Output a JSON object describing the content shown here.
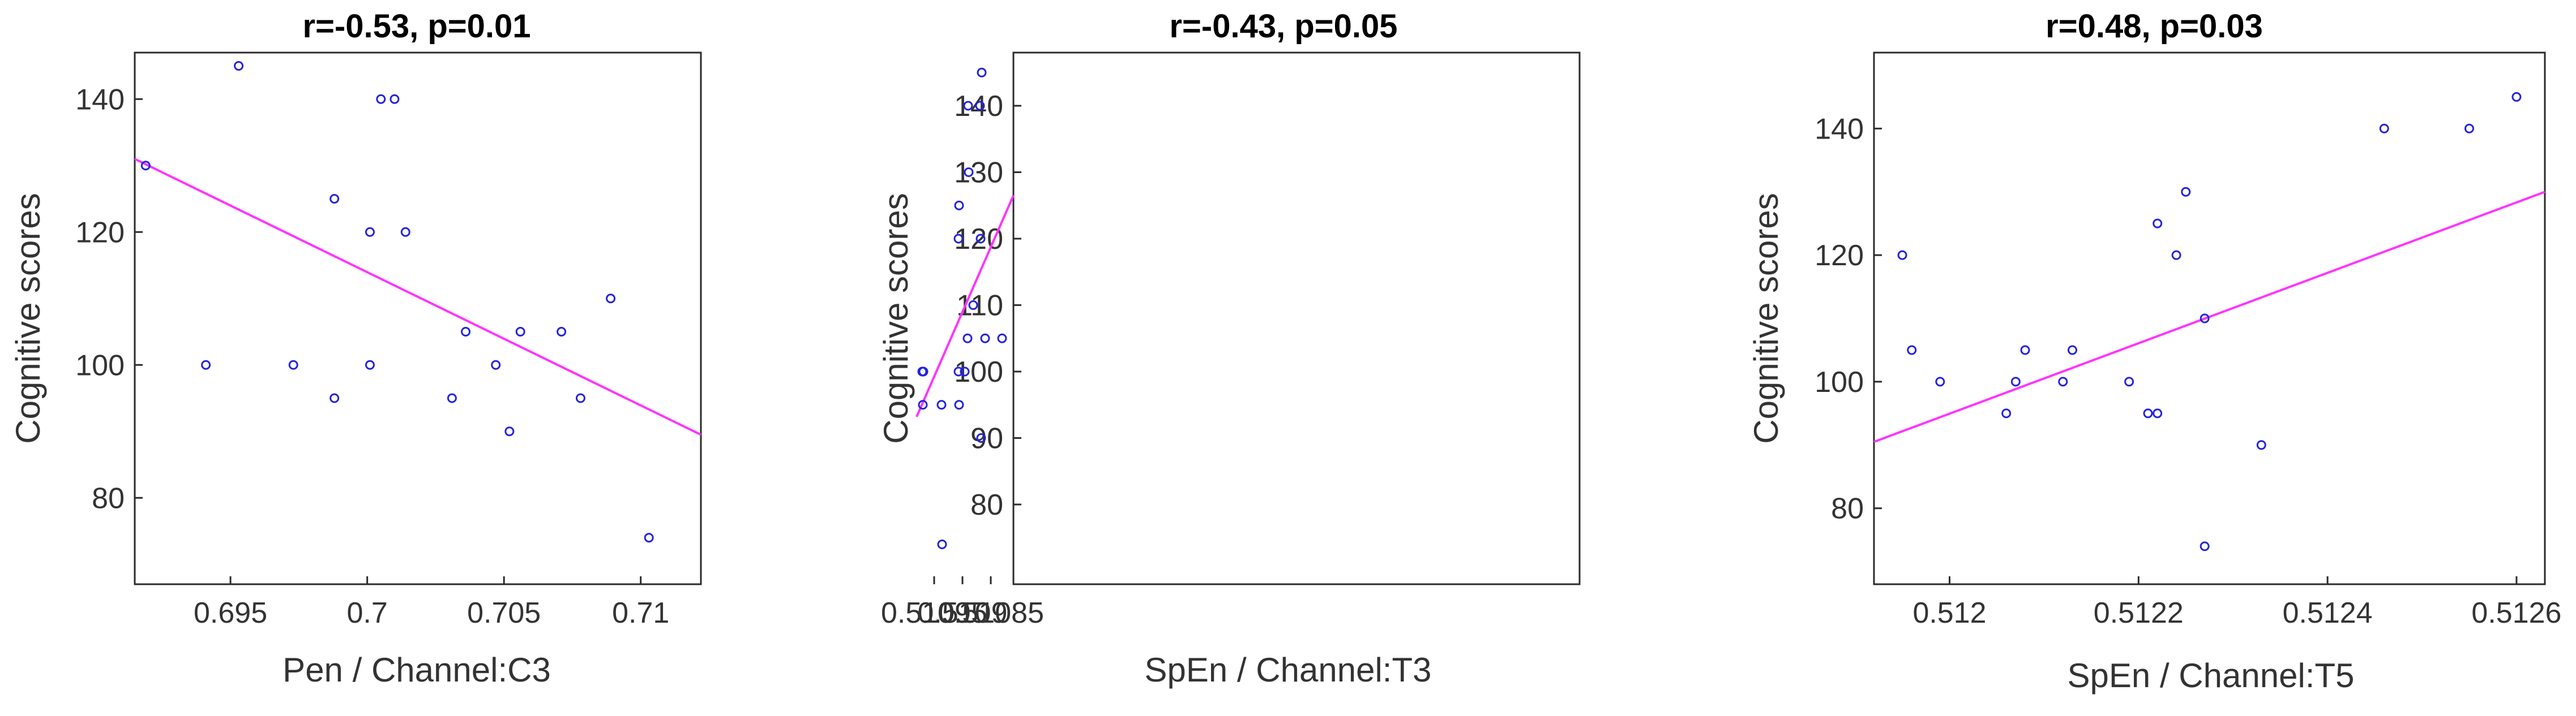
{
  "chart_data": [
    {
      "type": "scatter",
      "title": "r=-0.53, p=0.01",
      "xlabel": "Pen / Channel:C3",
      "ylabel": "Cognitive scores",
      "xlim": [
        0.6915,
        0.7122
      ],
      "ylim": [
        67,
        147
      ],
      "xticks": [
        0.695,
        0.7,
        0.705,
        0.71
      ],
      "xtick_labels": [
        "0.695",
        "0.7",
        "0.705",
        "0.71"
      ],
      "yticks": [
        80,
        100,
        120,
        140
      ],
      "ytick_labels": [
        "80",
        "100",
        "120",
        "140"
      ],
      "points": [
        [
          0.6919,
          130
        ],
        [
          0.6941,
          100
        ],
        [
          0.6953,
          145
        ],
        [
          0.6973,
          100
        ],
        [
          0.6988,
          125
        ],
        [
          0.6988,
          95
        ],
        [
          0.7001,
          120
        ],
        [
          0.7001,
          100
        ],
        [
          0.7005,
          140
        ],
        [
          0.701,
          140
        ],
        [
          0.7014,
          120
        ],
        [
          0.7031,
          95
        ],
        [
          0.7036,
          105
        ],
        [
          0.7047,
          100
        ],
        [
          0.7052,
          90
        ],
        [
          0.7056,
          105
        ],
        [
          0.7071,
          105
        ],
        [
          0.7078,
          95
        ],
        [
          0.7089,
          110
        ],
        [
          0.7103,
          74
        ]
      ],
      "fit_line": [
        [
          0.6915,
          131
        ],
        [
          0.7122,
          89.5
        ]
      ],
      "point_color": "#2222dd",
      "line_color": "#ff33ff",
      "grid": false
    },
    {
      "type": "scatter",
      "title": "r=-0.43, p=0.05",
      "xlabel": "SpEn / Channel:T3",
      "ylabel": "Cognitive scores",
      "xlim": [
        0.51081,
        0.50981
      ],
      "ylim": [
        68,
        148
      ],
      "xticks": [
        0.51085,
        0.5109,
        0.51095
      ],
      "xtick_labels": [
        "0.51085",
        "0.5109",
        "0.51095"
      ],
      "yticks": [
        80,
        90,
        100,
        110,
        120,
        130,
        140
      ],
      "ytick_labels": [
        "80",
        "90",
        "100",
        "110",
        "120",
        "130",
        "140"
      ],
      "points": [
        [
          0.51083,
          105
        ],
        [
          0.51086,
          105
        ],
        [
          0.510866,
          145
        ],
        [
          0.510867,
          90
        ],
        [
          0.510868,
          120
        ],
        [
          0.510869,
          140
        ],
        [
          0.510881,
          110
        ],
        [
          0.510889,
          130
        ],
        [
          0.51089,
          140
        ],
        [
          0.510891,
          105
        ],
        [
          0.510896,
          100
        ],
        [
          0.510906,
          125
        ],
        [
          0.510906,
          95
        ],
        [
          0.510907,
          120
        ],
        [
          0.510907,
          100
        ],
        [
          0.510936,
          74
        ],
        [
          0.510937,
          95
        ],
        [
          0.510969,
          100
        ],
        [
          0.51097,
          100
        ],
        [
          0.51097,
          95
        ],
        [
          0.510971,
          100
        ]
      ],
      "fit_line": [
        [
          0.51081,
          126.5
        ],
        [
          0.510981,
          93.2
        ]
      ],
      "point_color": "#2222dd",
      "line_color": "#ff33ff",
      "grid": false
    },
    {
      "type": "scatter",
      "title": "r=0.48, p=0.03",
      "xlabel": "SpEn / Channel:T5",
      "ylabel": "Cognitive scores",
      "xlim": [
        0.51192,
        0.51263
      ],
      "ylim": [
        68,
        152
      ],
      "xticks": [
        0.512,
        0.5122,
        0.5124,
        0.5126
      ],
      "xtick_labels": [
        "0.512",
        "0.5122",
        "0.5124",
        "0.5126"
      ],
      "yticks": [
        80,
        100,
        120,
        140
      ],
      "ytick_labels": [
        "80",
        "100",
        "120",
        "140"
      ],
      "points": [
        [
          0.51195,
          120
        ],
        [
          0.51196,
          105
        ],
        [
          0.51199,
          100
        ],
        [
          0.51206,
          95
        ],
        [
          0.51207,
          100
        ],
        [
          0.51208,
          105
        ],
        [
          0.51212,
          100
        ],
        [
          0.51213,
          105
        ],
        [
          0.51219,
          100
        ],
        [
          0.51221,
          95
        ],
        [
          0.51222,
          125
        ],
        [
          0.51222,
          95
        ],
        [
          0.51224,
          120
        ],
        [
          0.51225,
          130
        ],
        [
          0.51227,
          110
        ],
        [
          0.51227,
          74
        ],
        [
          0.51233,
          90
        ],
        [
          0.51246,
          140
        ],
        [
          0.51255,
          140
        ],
        [
          0.5126,
          145
        ]
      ],
      "fit_line": [
        [
          0.51192,
          90.5
        ],
        [
          0.51263,
          130
        ]
      ],
      "point_color": "#2222dd",
      "line_color": "#ff33ff",
      "grid": false
    }
  ]
}
